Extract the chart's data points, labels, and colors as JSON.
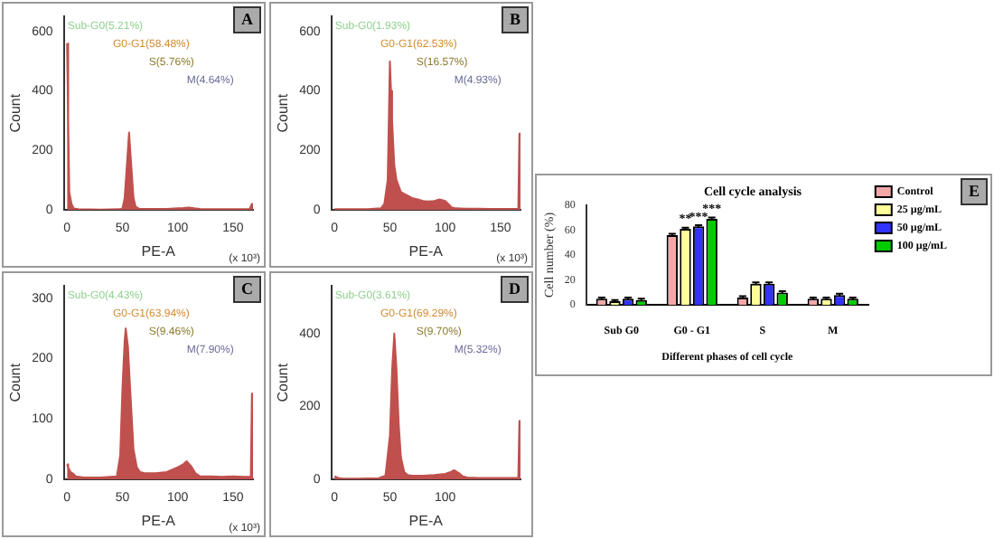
{
  "chart_data": [
    {
      "type": "area",
      "xlabel": "PE-A",
      "ylabel": "Count",
      "xlim": [
        -3,
        168
      ],
      "xticks": [
        0,
        50,
        100,
        150
      ],
      "ylim": [
        0,
        650
      ],
      "yticks": [
        0,
        200,
        400,
        600
      ],
      "grid": false,
      "legend": false,
      "series": [
        {
          "color": "#c0504d",
          "x": [
            0,
            1,
            2,
            4,
            6,
            10,
            30,
            48,
            50,
            52,
            54,
            56,
            58,
            60,
            62,
            65,
            70,
            80,
            90,
            100,
            105,
            110,
            115,
            120,
            130,
            140,
            150,
            160,
            165,
            167,
            168
          ],
          "values": [
            560,
            300,
            60,
            20,
            5,
            2,
            1,
            2,
            5,
            40,
            150,
            260,
            150,
            40,
            10,
            4,
            3,
            3,
            3,
            5,
            6,
            8,
            5,
            3,
            2,
            2,
            2,
            2,
            3,
            20,
            20
          ]
        }
      ],
      "annotations": [
        "A",
        "Sub-G0(5.21%)",
        "G0-G1(58.48%)",
        "S(5.76%)",
        "M(4.64%)",
        "(x 10³)"
      ]
    },
    {
      "type": "area",
      "xlabel": "PE-A",
      "ylabel": "Count",
      "xlim": [
        -3,
        168
      ],
      "xticks": [
        0,
        50,
        100,
        150
      ],
      "ylim": [
        0,
        650
      ],
      "yticks": [
        0,
        200,
        400,
        600
      ],
      "grid": false,
      "legend": false,
      "series": [
        {
          "color": "#c0504d",
          "x": [
            0,
            10,
            30,
            42,
            45,
            48,
            50,
            51,
            52,
            54,
            56,
            60,
            65,
            70,
            75,
            80,
            85,
            90,
            95,
            100,
            104,
            106,
            110,
            120,
            130,
            140,
            150,
            160,
            166,
            167,
            168
          ],
          "values": [
            2,
            2,
            2,
            5,
            20,
            100,
            500,
            400,
            300,
            150,
            100,
            60,
            50,
            40,
            35,
            30,
            28,
            30,
            35,
            30,
            15,
            8,
            5,
            4,
            4,
            3,
            3,
            3,
            3,
            256,
            256
          ]
        }
      ],
      "annotations": [
        "B",
        "Sub-G0(1.93%)",
        "G0-G1(62.53%)",
        "S(16.57%)",
        "M(4.93%)",
        "(x 10³)"
      ]
    },
    {
      "type": "area",
      "xlabel": "PE-A",
      "ylabel": "Count",
      "xlim": [
        -3,
        168
      ],
      "xticks": [
        0,
        50,
        100,
        150
      ],
      "ylim": [
        0,
        320
      ],
      "yticks": [
        0,
        100,
        200,
        300
      ],
      "grid": false,
      "legend": false,
      "series": [
        {
          "color": "#c0504d",
          "x": [
            0,
            1,
            3,
            5,
            8,
            15,
            30,
            45,
            48,
            50,
            52,
            53,
            55,
            57,
            60,
            63,
            66,
            70,
            80,
            90,
            100,
            105,
            108,
            112,
            116,
            120,
            130,
            140,
            150,
            160,
            166,
            167,
            168
          ],
          "values": [
            25,
            20,
            12,
            10,
            5,
            3,
            3,
            5,
            40,
            150,
            230,
            250,
            220,
            150,
            50,
            20,
            12,
            10,
            10,
            12,
            20,
            25,
            30,
            22,
            10,
            5,
            5,
            4,
            5,
            4,
            4,
            142,
            142
          ]
        }
      ],
      "annotations": [
        "C",
        "Sub-G0(4.43%)",
        "G0-G1(63.94%)",
        "S(9.46%)",
        "M(7.90%)",
        "(x 10³)"
      ]
    },
    {
      "type": "area",
      "xlabel": "PE-A",
      "ylabel": "Count",
      "xlim": [
        -3,
        168
      ],
      "xticks": [
        0,
        50,
        100
      ],
      "ylim": [
        0,
        530
      ],
      "yticks": [
        0,
        200,
        400
      ],
      "grid": false,
      "legend": false,
      "series": [
        {
          "color": "#c0504d",
          "x": [
            0,
            2,
            4,
            8,
            20,
            40,
            46,
            50,
            52,
            54,
            56,
            58,
            60,
            63,
            66,
            70,
            80,
            90,
            100,
            105,
            108,
            112,
            116,
            120,
            130,
            140,
            150,
            160,
            166,
            167,
            168
          ],
          "values": [
            8,
            6,
            3,
            2,
            2,
            3,
            10,
            120,
            300,
            400,
            300,
            150,
            60,
            20,
            12,
            10,
            10,
            12,
            15,
            20,
            25,
            18,
            8,
            5,
            4,
            4,
            4,
            4,
            4,
            160,
            160
          ]
        }
      ],
      "annotations": [
        "D",
        "Sub-G0(3.61%)",
        "G0-G1(69.29%)",
        "S(9.70%)",
        "M(5.32%)"
      ]
    },
    {
      "type": "bar",
      "title": "Cell cycle analysis",
      "xlabel": "Different phases of cell cycle",
      "ylabel": "Cell number (%)",
      "categories": [
        "Sub G0",
        "G0 - G1",
        "S",
        "M"
      ],
      "ylim": [
        0,
        80
      ],
      "yticks": [
        0,
        20,
        40,
        60,
        80
      ],
      "grid": false,
      "legend": "top right",
      "series": [
        {
          "name": "Control",
          "color": "#f4a7a7",
          "values": [
            5,
            56,
            6,
            5
          ],
          "errors": [
            1,
            1,
            1,
            1
          ]
        },
        {
          "name": "25 µg/mL",
          "color": "#ffff99",
          "values": [
            3,
            61,
            17,
            5
          ],
          "errors": [
            1,
            1,
            1,
            1
          ]
        },
        {
          "name": "50 µg/mL",
          "color": "#3333ff",
          "values": [
            5,
            63,
            17,
            8
          ],
          "errors": [
            1,
            1,
            1,
            1
          ]
        },
        {
          "name": "100 µg/mL",
          "color": "#00cc00",
          "values": [
            4,
            69,
            10,
            5
          ],
          "errors": [
            1,
            1,
            1,
            1
          ]
        }
      ],
      "annotations": [
        "E",
        "**",
        "***",
        "***"
      ]
    }
  ]
}
